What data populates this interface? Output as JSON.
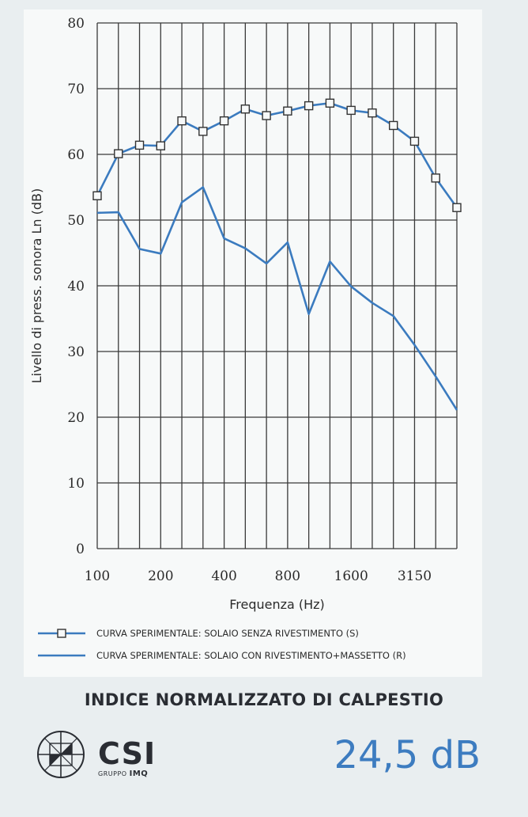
{
  "chart_data": {
    "type": "line",
    "xlabel": "Frequenza (Hz)",
    "ylabel": "Livello di press. sonora Ln (dB)",
    "ylim": [
      0,
      80
    ],
    "yticks": [
      0,
      10,
      20,
      30,
      40,
      50,
      60,
      70,
      80
    ],
    "x": [
      "100",
      "125",
      "160",
      "200",
      "250",
      "315",
      "400",
      "500",
      "630",
      "800",
      "1000",
      "1250",
      "1600",
      "2000",
      "2500",
      "3150",
      "4000",
      "5000"
    ],
    "xtick_labels": [
      "100",
      "200",
      "400",
      "800",
      "1600",
      "3150"
    ],
    "grid": true,
    "legend_position": "bottom",
    "series": [
      {
        "name": "CURVA SPERIMENTALE: SOLAIO SENZA RIVESTIMENTO (S)",
        "marker": "square",
        "values": [
          53.7,
          60.1,
          61.4,
          61.3,
          65.1,
          63.5,
          65.1,
          66.9,
          65.9,
          66.6,
          67.4,
          67.8,
          66.7,
          66.3,
          64.4,
          62.0,
          56.4,
          51.9
        ]
      },
      {
        "name": "CURVA SPERIMENTALE: SOLAIO CON RIVESTIMENTO+MASSETTO (R)",
        "marker": "none",
        "values": [
          51.1,
          51.2,
          45.6,
          44.9,
          52.7,
          55.0,
          47.2,
          45.7,
          43.4,
          46.6,
          35.7,
          43.7,
          39.9,
          37.4,
          35.4,
          31.0,
          26.2,
          21.1
        ]
      }
    ],
    "colors": {
      "line": "#3b7bbf",
      "grid": "#3a3a3a",
      "text": "#2b2b2b"
    }
  },
  "index": {
    "title": "INDICE NORMALIZZATO DI CALPESTIO",
    "value": "24,5 dB",
    "value_color": "#3d7cc0"
  },
  "brand": {
    "name": "CSI",
    "group": "GRUPPO",
    "group_name": "IMQ",
    "mark_icon": "csi-circle-logo-icon"
  }
}
